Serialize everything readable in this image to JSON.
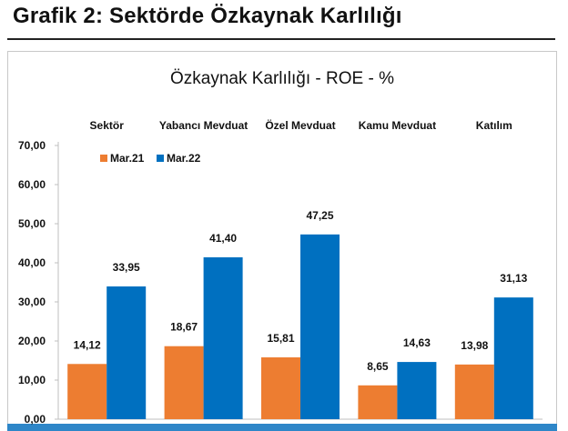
{
  "header": {
    "title": "Grafik 2: Sektörde Özkaynak Karlılığı"
  },
  "chart_data": {
    "type": "bar",
    "title": "Özkaynak Karlılığı - ROE - %",
    "categories": [
      "Sektör",
      "Yabancı Mevduat",
      "Özel Mevduat",
      "Kamu Mevduat",
      "Katılım"
    ],
    "series": [
      {
        "name": "Mar.21",
        "color": "#ed7d31",
        "values": [
          14.12,
          18.67,
          15.81,
          8.65,
          13.98
        ],
        "labels": [
          "14,12",
          "18,67",
          "15,81",
          "8,65",
          "13,98"
        ]
      },
      {
        "name": "Mar.22",
        "color": "#0070c0",
        "values": [
          33.95,
          41.4,
          47.25,
          14.63,
          31.13
        ],
        "labels": [
          "33,95",
          "41,40",
          "47,25",
          "14,63",
          "31,13"
        ]
      }
    ],
    "yticks": [
      "0,00",
      "10,00",
      "20,00",
      "30,00",
      "40,00",
      "50,00",
      "60,00",
      "70,00"
    ],
    "ylim": [
      0,
      70
    ],
    "xlabel": "",
    "ylabel": "",
    "grid": false,
    "legend_position": "top-left",
    "category_labels_position": "top"
  }
}
